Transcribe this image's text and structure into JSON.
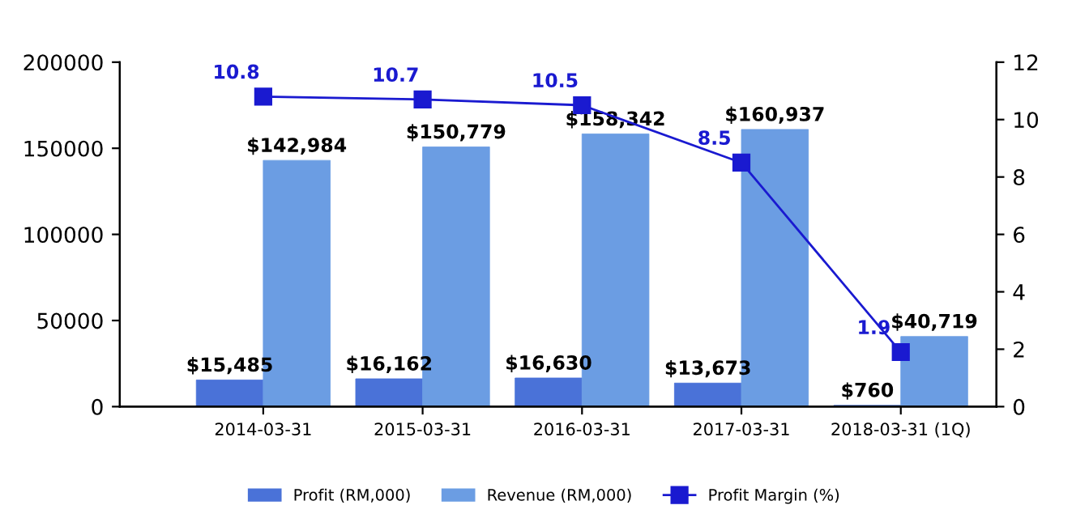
{
  "chart_data": {
    "type": "bar",
    "categories": [
      "2014-03-31",
      "2015-03-31",
      "2016-03-31",
      "2017-03-31",
      "2018-03-31 (1Q)"
    ],
    "series": [
      {
        "name": "Profit (RM,000)",
        "color": "#4a72d8",
        "values": [
          15485,
          16162,
          16630,
          13673,
          760
        ],
        "value_labels": [
          "$15,485",
          "$16,162",
          "$16,630",
          "$13,673",
          "$760"
        ]
      },
      {
        "name": "Revenue (RM,000)",
        "color": "#6b9de3",
        "values": [
          142984,
          150779,
          158342,
          160937,
          40719
        ],
        "value_labels": [
          "$142,984",
          "$150,779",
          "$158,342",
          "$160,937",
          "$40,719"
        ]
      },
      {
        "name": "Profit Margin (%)",
        "type": "line",
        "axis": "y2",
        "color": "#1a1ad0",
        "marker": "square",
        "values": [
          10.8,
          10.7,
          10.5,
          8.5,
          1.9
        ],
        "value_labels": [
          "10.8",
          "10.7",
          "10.5",
          "8.5",
          "1.9"
        ]
      }
    ],
    "ylim": [
      0,
      200000
    ],
    "yticks": [
      0,
      50000,
      100000,
      150000,
      200000
    ],
    "y2lim": [
      0,
      12
    ],
    "y2ticks": [
      0,
      2,
      4,
      6,
      8,
      10,
      12
    ],
    "grid": false,
    "legend": "bottom"
  }
}
